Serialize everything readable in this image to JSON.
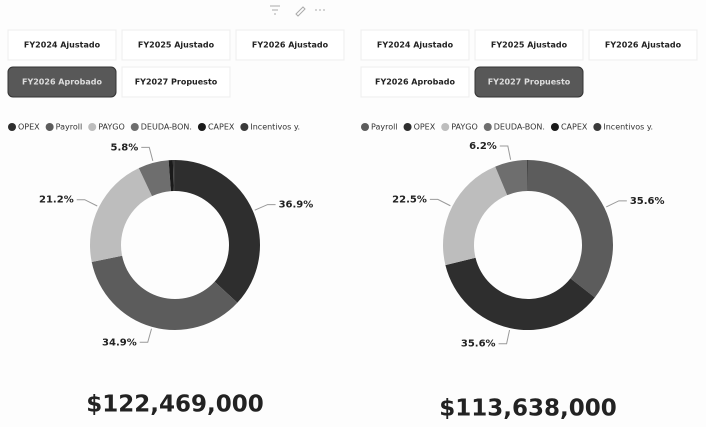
{
  "chart_data": [
    {
      "type": "donut",
      "filters": [
        "FY2024 Ajustado",
        "FY2025 Ajustado",
        "FY2026 Ajustado",
        "FY2026 Aprobado",
        "FY2027 Propuesto"
      ],
      "selected_filter": 3,
      "categories": [
        "OPEX",
        "Payroll",
        "PAYGO",
        "DEUDA-BON.",
        "CAPEX",
        "Incentivos y."
      ],
      "values": [
        36.9,
        34.9,
        21.2,
        5.8,
        0.8,
        0.4
      ],
      "value_labels": [
        "36.9%",
        "34.9%",
        "21.2%",
        "5.8%",
        null,
        null
      ],
      "colors": [
        "#2e2e2e",
        "#5c5c5c",
        "#bdbdbd",
        "#6e6e6e",
        "#1a1a1a",
        "#3a3a3a"
      ],
      "total": "$122,469,000"
    },
    {
      "type": "donut",
      "filters": [
        "FY2024 Ajustado",
        "FY2025 Ajustado",
        "FY2026 Ajustado",
        "FY2026 Aprobado",
        "FY2027 Propuesto"
      ],
      "selected_filter": 4,
      "categories": [
        "Payroll",
        "OPEX",
        "PAYGO",
        "DEUDA-BON.",
        "CAPEX",
        "Incentivos y."
      ],
      "values": [
        35.6,
        35.6,
        22.5,
        6.2,
        0.1,
        0.0
      ],
      "value_labels": [
        "35.6%",
        "35.6%",
        "22.5%",
        "6.2%",
        null,
        null
      ],
      "colors": [
        "#5c5c5c",
        "#2e2e2e",
        "#bdbdbd",
        "#6e6e6e",
        "#1a1a1a",
        "#3a3a3a"
      ],
      "total": "$113,638,000"
    }
  ]
}
